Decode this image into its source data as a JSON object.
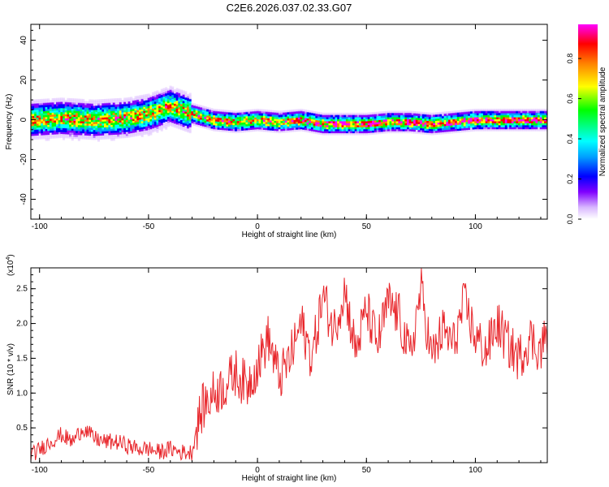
{
  "title": "C2E6.2026.037.02.33.G07",
  "chart_data": [
    {
      "type": "heatmap",
      "xlabel": "Height of straight line (km)",
      "ylabel": "Frequency (Hz)",
      "xlim": [
        -104,
        133
      ],
      "ylim": [
        -50,
        48
      ],
      "xticks": [
        -100,
        -50,
        0,
        50,
        100
      ],
      "yticks": [
        40,
        20,
        0,
        -20,
        -40
      ],
      "grid": false,
      "colorbar": {
        "label": "Normalized spectral amplitude",
        "range": [
          0,
          0.97
        ],
        "ticks": [
          0.0,
          0.2,
          0.4,
          0.6,
          0.8
        ],
        "tick_labels": [
          "0.0",
          "0.2",
          "0.4",
          "0.6",
          "0.8"
        ],
        "colormap": [
          "#ffffff",
          "#d9b8ff",
          "#8000ff",
          "#0000ff",
          "#00a0ff",
          "#00ffff",
          "#00ff80",
          "#00ff00",
          "#ffff00",
          "#ff8000",
          "#ff0000",
          "#ff00ff"
        ]
      },
      "ridge": {
        "description_points_x": [
          -104,
          -90,
          -75,
          -60,
          -50,
          -45,
          -40,
          -35,
          -30,
          -20,
          -10,
          0,
          10,
          20,
          30,
          40,
          50,
          60,
          70,
          80,
          90,
          100,
          110,
          120,
          133
        ],
        "frequency_hz": [
          0,
          1,
          0,
          1,
          3,
          5,
          7,
          5,
          3,
          0,
          -1,
          0,
          -1,
          0,
          -2,
          -2,
          -2,
          -1,
          -1,
          -2,
          -1,
          0,
          0,
          0,
          0
        ]
      }
    },
    {
      "type": "line",
      "xlabel": "Height of straight line (km)",
      "ylabel": "SNR (10 * v/v)",
      "yscale_label": "(x10",
      "yscale_exp": "4",
      "xlim": [
        -104,
        133
      ],
      "ylim": [
        0,
        2.8
      ],
      "xticks": [
        -100,
        -50,
        0,
        50,
        100
      ],
      "yticks": [
        0.5,
        1.0,
        1.5,
        2.0,
        2.5
      ],
      "ytick_labels": [
        "0.5",
        "1.0",
        "1.5",
        "2.0",
        "2.5"
      ],
      "color": "#e8262b",
      "grid": false,
      "series": [
        {
          "x": [
            -104,
            -95,
            -90,
            -85,
            -80,
            -75,
            -70,
            -65,
            -60,
            -55,
            -50,
            -45,
            -40,
            -35,
            -30,
            -28,
            -25,
            -20,
            -15,
            -10,
            -5,
            0,
            5,
            10,
            15,
            20,
            25,
            30,
            35,
            40,
            45,
            50,
            55,
            60,
            65,
            70,
            75,
            80,
            85,
            90,
            95,
            100,
            105,
            110,
            115,
            120,
            125,
            130,
            133
          ],
          "values": [
            0.1,
            0.3,
            0.4,
            0.3,
            0.5,
            0.35,
            0.3,
            0.3,
            0.25,
            0.2,
            0.2,
            0.15,
            0.2,
            0.15,
            0.15,
            0.5,
            0.8,
            1.0,
            1.1,
            1.3,
            1.1,
            1.4,
            1.8,
            1.2,
            1.5,
            2.0,
            1.5,
            2.4,
            1.9,
            2.5,
            1.6,
            2.2,
            1.7,
            2.3,
            2.1,
            1.5,
            2.5,
            1.5,
            1.9,
            1.7,
            2.3,
            1.8,
            1.6,
            2.0,
            1.7,
            1.5,
            1.8,
            1.6,
            1.9
          ]
        }
      ]
    }
  ]
}
